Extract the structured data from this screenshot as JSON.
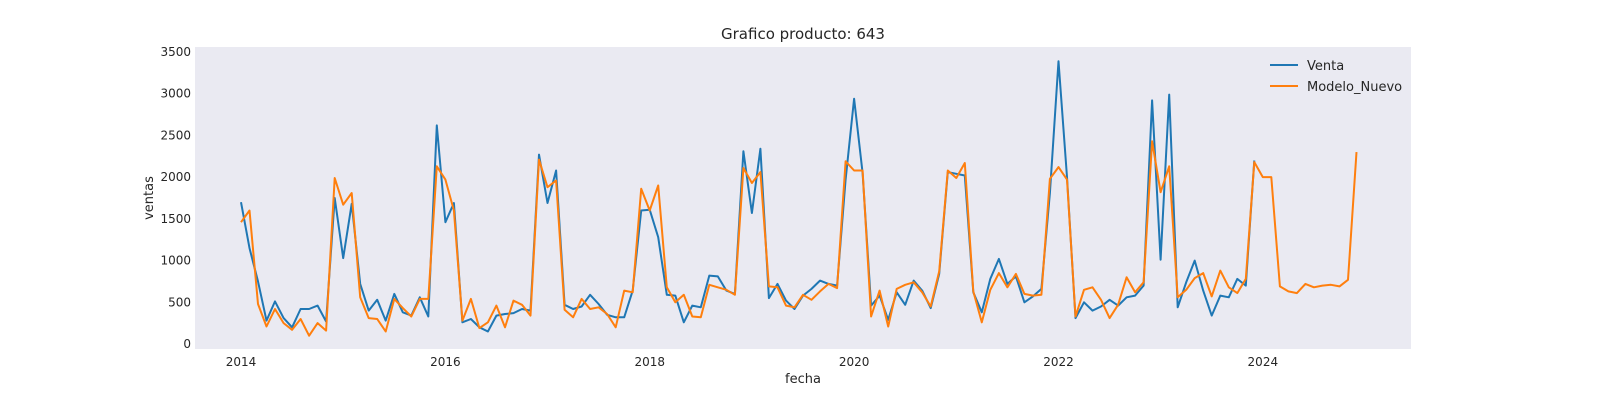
{
  "chart_data": {
    "type": "line",
    "title": "Grafico producto: 643",
    "xlabel": "fecha",
    "ylabel": "ventas",
    "xlim": [
      2013.55,
      2025.45
    ],
    "ylim": [
      -60,
      3560
    ],
    "x_ticks": [
      2014,
      2016,
      2018,
      2020,
      2022,
      2024
    ],
    "x_tick_labels": [
      "2014",
      "2016",
      "2018",
      "2020",
      "2022",
      "2024"
    ],
    "y_ticks": [
      0,
      500,
      1000,
      1500,
      2000,
      2500,
      3000,
      3500
    ],
    "y_tick_labels": [
      "0",
      "500",
      "1000",
      "1500",
      "2000",
      "2500",
      "3000",
      "3500"
    ],
    "grid": false,
    "legend_position": "top-right",
    "x_start": 2014.0,
    "x_step": 0.0833333,
    "series": [
      {
        "name": "Venta",
        "color": "#1f77b4",
        "values": [
          1700,
          1150,
          750,
          280,
          510,
          310,
          200,
          420,
          420,
          460,
          270,
          1750,
          1030,
          1680,
          720,
          400,
          530,
          280,
          600,
          380,
          340,
          560,
          330,
          2620,
          1460,
          1690,
          260,
          300,
          200,
          150,
          340,
          360,
          370,
          420,
          400,
          2270,
          1690,
          2080,
          470,
          420,
          450,
          590,
          480,
          350,
          320,
          320,
          640,
          1600,
          1610,
          1280,
          590,
          580,
          260,
          460,
          440,
          820,
          810,
          640,
          600,
          2310,
          1570,
          2340,
          550,
          720,
          520,
          420,
          580,
          660,
          760,
          720,
          700,
          1970,
          2940,
          2050,
          460,
          580,
          290,
          620,
          470,
          760,
          640,
          430,
          840,
          2060,
          2040,
          2020,
          620,
          380,
          780,
          1020,
          720,
          810,
          500,
          570,
          660,
          1810,
          3390,
          2000,
          310,
          500,
          400,
          450,
          530,
          460,
          560,
          580,
          700,
          2920,
          1010,
          2990,
          440,
          740,
          1000,
          640,
          340,
          580,
          560,
          780,
          700,
          2200
        ]
      },
      {
        "name": "Modelo_Nuevo",
        "color": "#ff7f0e",
        "values": [
          1460,
          1600,
          480,
          210,
          420,
          250,
          170,
          300,
          100,
          250,
          160,
          1990,
          1670,
          1810,
          560,
          310,
          300,
          150,
          540,
          430,
          330,
          540,
          540,
          2130,
          1970,
          1600,
          280,
          540,
          190,
          260,
          460,
          200,
          520,
          470,
          340,
          2210,
          1880,
          1960,
          410,
          320,
          540,
          420,
          440,
          360,
          200,
          640,
          620,
          1860,
          1600,
          1900,
          680,
          500,
          590,
          330,
          320,
          710,
          680,
          650,
          590,
          2110,
          1930,
          2060,
          690,
          680,
          460,
          440,
          590,
          530,
          630,
          720,
          670,
          2190,
          2080,
          2080,
          330,
          640,
          210,
          660,
          710,
          740,
          620,
          450,
          870,
          2080,
          1990,
          2170,
          630,
          260,
          650,
          850,
          680,
          840,
          600,
          580,
          590,
          1980,
          2120,
          1970,
          330,
          650,
          680,
          530,
          310,
          470,
          800,
          620,
          740,
          2430,
          1820,
          2130,
          560,
          650,
          790,
          850,
          570,
          880,
          680,
          610,
          780,
          2180,
          2000,
          2000,
          690,
          630,
          610,
          720,
          680,
          700,
          710,
          690,
          770,
          2300
        ]
      }
    ]
  }
}
